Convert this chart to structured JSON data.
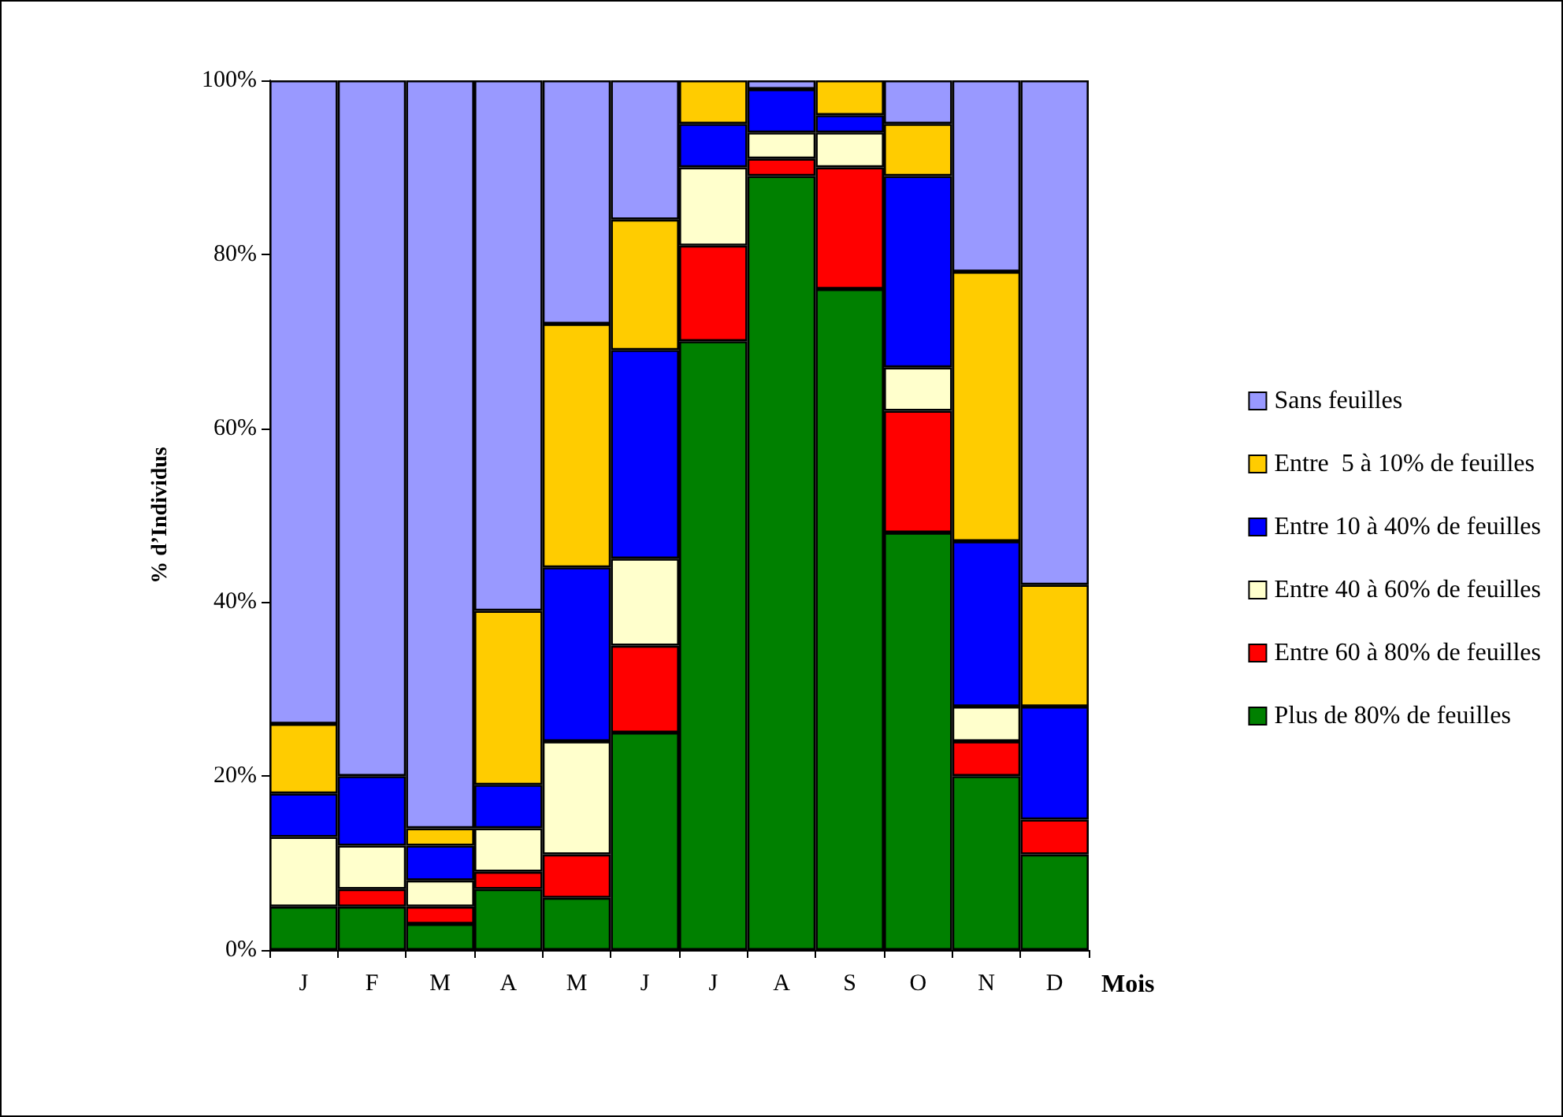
{
  "chart_data": {
    "type": "bar",
    "stacked": true,
    "ylabel": "% d’Individus",
    "xlabel": "Mois",
    "categories": [
      "J",
      "F",
      "M",
      "A",
      "M",
      "J",
      "J",
      "A",
      "S",
      "O",
      "N",
      "D"
    ],
    "ylim": [
      0,
      100
    ],
    "yticks": [
      {
        "value": 0,
        "label": "0%"
      },
      {
        "value": 20,
        "label": "20%"
      },
      {
        "value": 40,
        "label": "40%"
      },
      {
        "value": 60,
        "label": "60%"
      },
      {
        "value": 80,
        "label": "80%"
      },
      {
        "value": 100,
        "label": "100%"
      }
    ],
    "grid": false,
    "legend": "right",
    "series": [
      {
        "name": "Plus de 80% de feuilles",
        "color": "#008000",
        "values": [
          5,
          5,
          3,
          7,
          6,
          25,
          70,
          89,
          76,
          48,
          20,
          11
        ]
      },
      {
        "name": "Entre 60 à 80% de feuilles",
        "color": "#ff0000",
        "values": [
          0,
          2,
          2,
          2,
          5,
          10,
          11,
          2,
          14,
          14,
          4,
          4
        ]
      },
      {
        "name": "Entre 40 à 60% de feuilles",
        "color": "#ffffcc",
        "values": [
          8,
          5,
          3,
          5,
          13,
          10,
          9,
          3,
          4,
          5,
          4,
          0
        ]
      },
      {
        "name": "Entre 10 à 40% de feuilles",
        "color": "#0000ff",
        "values": [
          5,
          8,
          4,
          5,
          20,
          24,
          5,
          5,
          2,
          22,
          19,
          13
        ]
      },
      {
        "name": "Entre  5 à 10% de feuilles",
        "color": "#ffcc00",
        "values": [
          8,
          0,
          2,
          20,
          28,
          15,
          5,
          0,
          4,
          6,
          31,
          14
        ]
      },
      {
        "name": "Sans feuilles",
        "color": "#9999ff",
        "values": [
          74,
          80,
          86,
          61,
          28,
          16,
          0,
          1,
          0,
          5,
          22,
          58
        ]
      }
    ]
  }
}
